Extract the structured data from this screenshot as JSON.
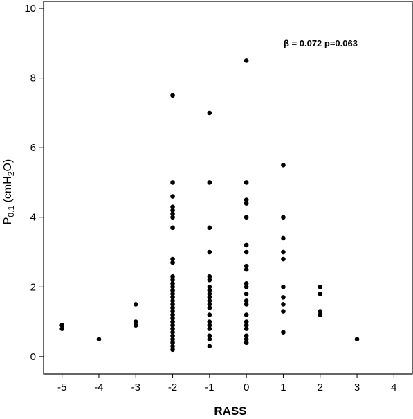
{
  "chart_data": {
    "type": "scatter",
    "title": "",
    "xlabel": "RASS",
    "ylabel": {
      "main": "P",
      "sub": "0.1",
      "unit_pre": " (cmH",
      "unit_sub": "2",
      "unit_post": "O)"
    },
    "xlim": [
      -5.5,
      4.5
    ],
    "ylim": [
      -0.5,
      10.2
    ],
    "xticks": [
      -5,
      -4,
      -3,
      -2,
      -1,
      0,
      1,
      2,
      3,
      4
    ],
    "yticks": [
      0,
      2,
      4,
      6,
      8,
      10
    ],
    "grid": false,
    "annotation": "β = 0.072  p=0.063",
    "points": [
      {
        "x": -5,
        "y": [
          0.8,
          0.9
        ]
      },
      {
        "x": -4,
        "y": [
          0.5
        ]
      },
      {
        "x": -3,
        "y": [
          0.9,
          1.0,
          1.5
        ]
      },
      {
        "x": -2,
        "y": [
          0.2,
          0.3,
          0.4,
          0.5,
          0.6,
          0.7,
          0.8,
          0.9,
          1.0,
          1.1,
          1.2,
          1.3,
          1.4,
          1.5,
          1.6,
          1.7,
          1.8,
          1.9,
          2.0,
          2.1,
          2.2,
          2.3,
          2.7,
          2.8,
          3.7,
          4.0,
          4.1,
          4.2,
          4.3,
          4.6,
          5.0,
          7.5
        ]
      },
      {
        "x": -1,
        "y": [
          0.3,
          0.5,
          0.6,
          0.8,
          0.9,
          1.0,
          1.2,
          1.4,
          1.5,
          1.6,
          1.7,
          1.8,
          1.9,
          2.0,
          2.2,
          2.3,
          3.0,
          3.7,
          5.0,
          7.0
        ]
      },
      {
        "x": 0,
        "y": [
          0.4,
          0.5,
          0.6,
          0.8,
          0.9,
          1.0,
          1.2,
          1.5,
          1.6,
          1.8,
          2.0,
          2.1,
          2.5,
          2.6,
          3.0,
          3.2,
          4.0,
          4.4,
          4.5,
          5.0,
          8.5
        ]
      },
      {
        "x": 1,
        "y": [
          0.7,
          1.3,
          1.5,
          1.7,
          2.0,
          2.8,
          3.0,
          3.4,
          4.0,
          5.5
        ]
      },
      {
        "x": 2,
        "y": [
          1.2,
          1.3,
          1.8,
          2.0
        ]
      },
      {
        "x": 3,
        "y": [
          0.5
        ]
      }
    ]
  }
}
